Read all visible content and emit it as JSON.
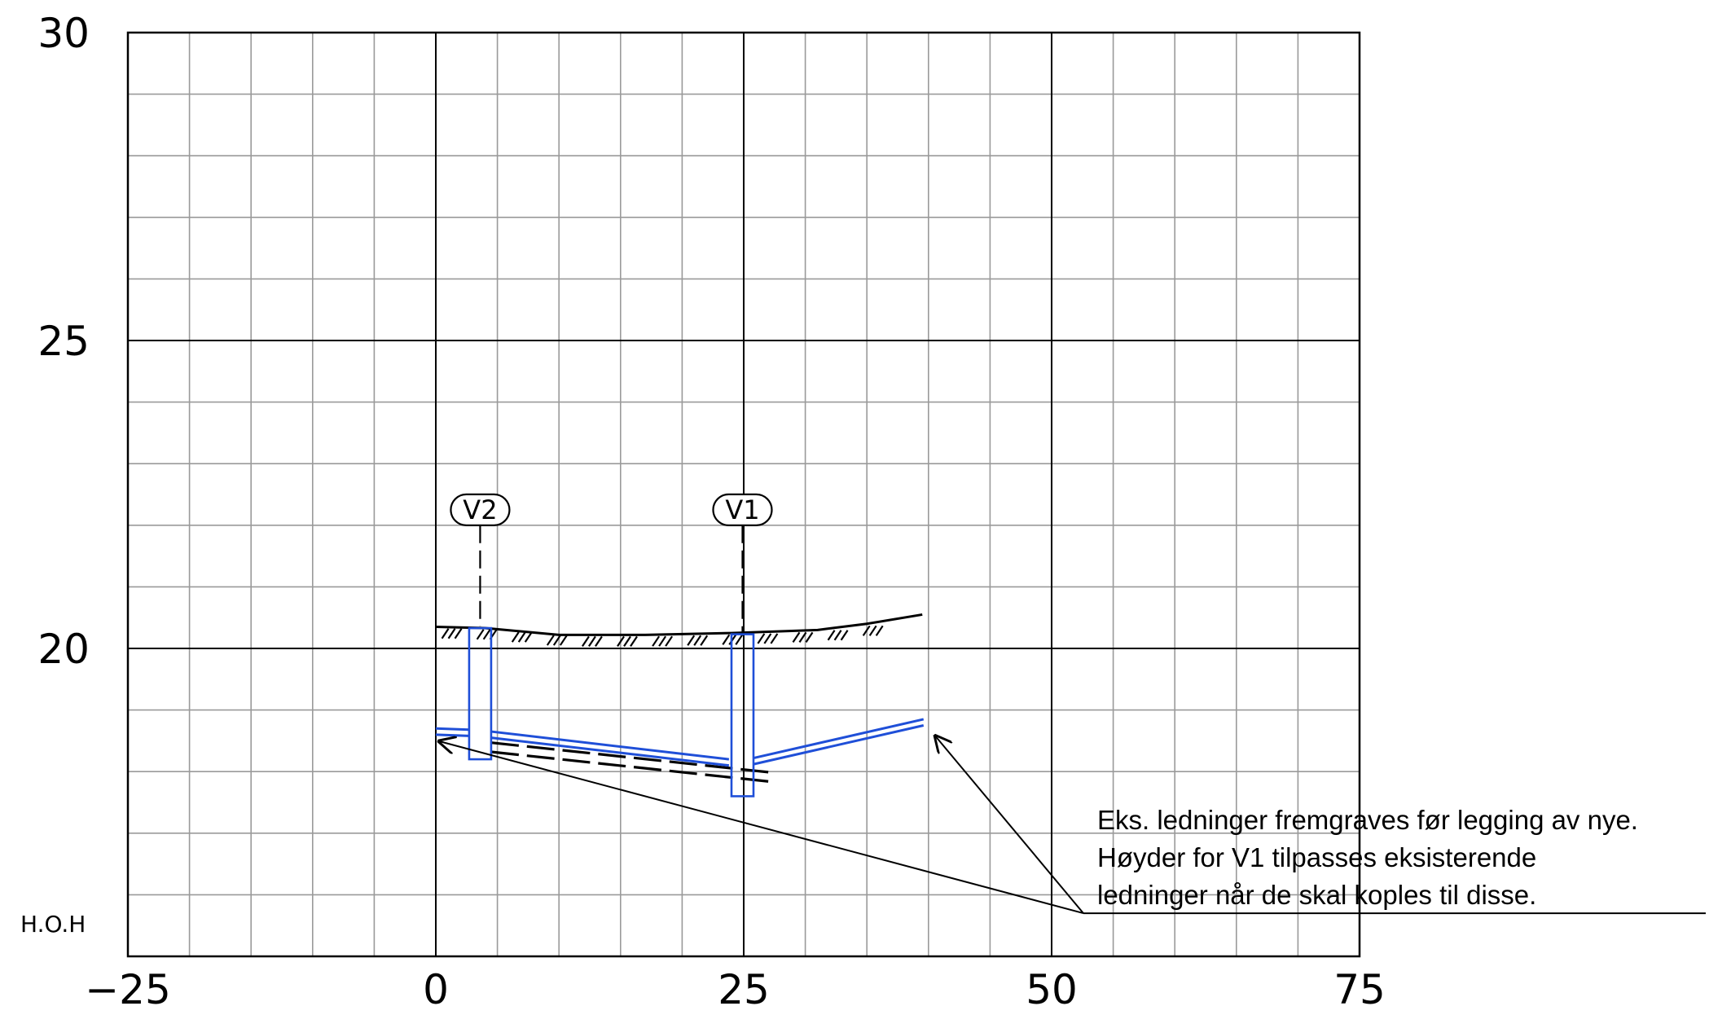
{
  "chart_data": {
    "type": "diagram",
    "x_axis": {
      "ticks": [
        -25,
        0,
        25,
        50,
        75
      ],
      "range": [
        -25,
        75
      ],
      "minor_step": 5
    },
    "y_axis": {
      "ticks": [
        20,
        25,
        30
      ],
      "range": [
        15,
        30
      ],
      "minor_step": 1
    },
    "y_unit_label": "H.O.H",
    "grid": true,
    "manholes": [
      {
        "label": "V2",
        "x": 3.6,
        "top": 20.33,
        "bottom": 18.2
      },
      {
        "label": "V1",
        "x": 24.9,
        "top": 20.23,
        "bottom": 17.6
      }
    ],
    "terrain": [
      [
        0,
        20.35
      ],
      [
        4,
        20.33
      ],
      [
        10,
        20.22
      ],
      [
        17,
        20.22
      ],
      [
        24,
        20.25
      ],
      [
        31,
        20.3
      ],
      [
        35,
        20.4
      ],
      [
        39.5,
        20.55
      ]
    ],
    "new_pipes": [
      {
        "name": "pipe-west",
        "points": [
          [
            0,
            18.7
          ],
          [
            2.7,
            18.68
          ]
        ]
      },
      {
        "name": "pipe-v2-v1",
        "points": [
          [
            4.5,
            18.65
          ],
          [
            23.8,
            18.2
          ]
        ]
      },
      {
        "name": "pipe-v1-east",
        "points": [
          [
            25.8,
            18.22
          ],
          [
            39.6,
            18.85
          ]
        ]
      }
    ],
    "existing_pipes": [
      {
        "name": "existing-upper",
        "points": [
          [
            4.5,
            18.47
          ],
          [
            27.5,
            17.98
          ]
        ]
      },
      {
        "name": "existing-lower",
        "points": [
          [
            4.5,
            18.32
          ],
          [
            27.5,
            17.83
          ]
        ]
      }
    ],
    "annotation": {
      "lines": [
        "Eks. ledninger fremgraves før legging av nye.",
        "Høyder for V1 tilpasses eksisterende",
        "ledninger når de skal koples til disse."
      ],
      "arrow_targets": [
        [
          0,
          18.5
        ],
        [
          40.2,
          18.5
        ]
      ]
    }
  },
  "colors": {
    "grid_minor": "#9a9a9a",
    "grid_major": "#000000",
    "pipe": "#1f4fd8",
    "line": "#000000"
  }
}
